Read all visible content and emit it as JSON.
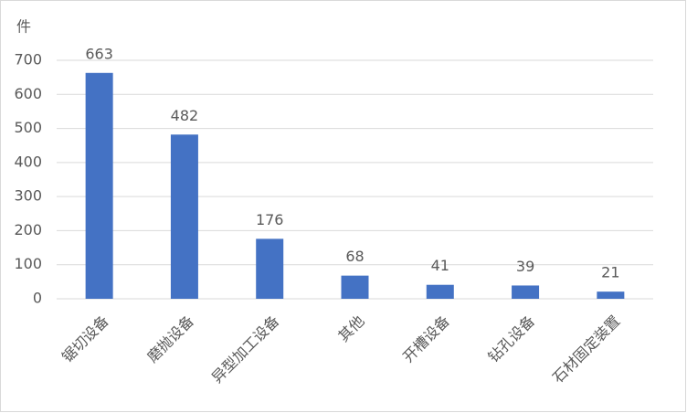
{
  "chart_data": {
    "type": "bar",
    "ylabel": "件",
    "categories": [
      "锯切设备",
      "磨抛设备",
      "异型加工设备",
      "其他",
      "开槽设备",
      "钻孔设备",
      "石材固定装置"
    ],
    "values": [
      663,
      482,
      176,
      68,
      41,
      39,
      21
    ],
    "color": "#4472c4",
    "ylim": [
      0,
      700
    ],
    "yticks": [
      0,
      100,
      200,
      300,
      400,
      500,
      600,
      700
    ],
    "grid": true
  }
}
